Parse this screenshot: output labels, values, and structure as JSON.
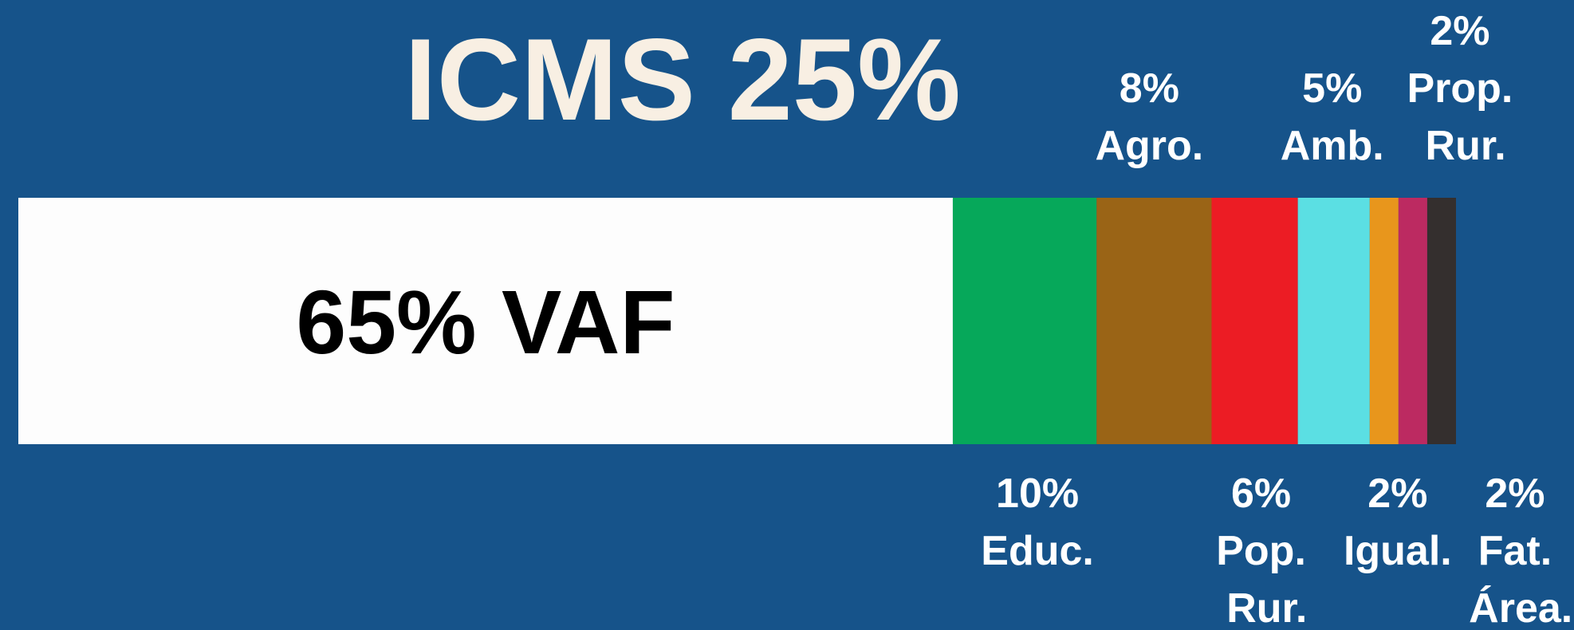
{
  "chart_data": {
    "type": "stacked-bar",
    "title": "ICMS 25%",
    "categories": [
      "VAF",
      "Educ.",
      "Agro.",
      "Pop. Rur.",
      "Amb.",
      "Igual.",
      "Prop. Rur.",
      "Fat. Área."
    ],
    "values": [
      65,
      10,
      8,
      6,
      5,
      2,
      2,
      2
    ],
    "value_labels": [
      "65%",
      "10%",
      "8%",
      "6%",
      "5%",
      "2%",
      "2%",
      "2%"
    ],
    "colors": [
      "#fdfdfd",
      "#06a85a",
      "#9a6416",
      "#ec1c24",
      "#5bdfe3",
      "#e8961c",
      "#bc2a61",
      "#342f2e"
    ]
  }
}
